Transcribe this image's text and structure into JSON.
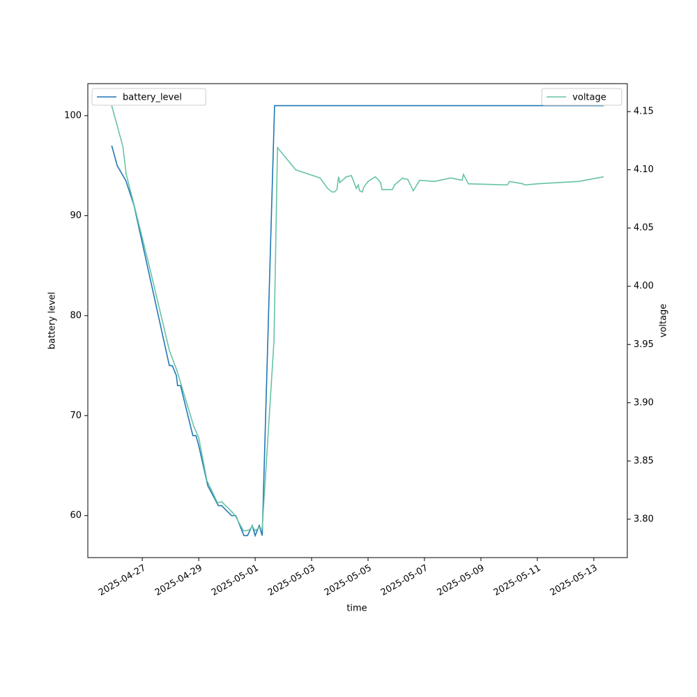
{
  "chart_data": {
    "type": "line",
    "xlabel": "time",
    "ylabel": "battery level",
    "y2label": "voltage",
    "xlim": [
      "2025-04-25 01:40",
      "2025-05-14 04:30"
    ],
    "xticks": [
      "2025-04-27",
      "2025-04-29",
      "2025-05-01",
      "2025-05-03",
      "2025-05-05",
      "2025-05-07",
      "2025-05-09",
      "2025-05-11",
      "2025-05-13"
    ],
    "ylim": [
      55.8,
      103.2
    ],
    "yticks": [
      60,
      70,
      80,
      90,
      100
    ],
    "y2lim": [
      3.767,
      4.174
    ],
    "y2ticks": [
      {
        "value": 3.8,
        "label": "3.80"
      },
      3.85,
      {
        "value": 3.9,
        "label": "3.90"
      },
      3.95,
      {
        "value": 4,
        "label": "4.00"
      },
      4.05,
      {
        "value": 4.1,
        "label": "4.10"
      },
      4.15
    ],
    "grid": false,
    "series": [
      {
        "name": "battery_level",
        "color": "#1f77b4",
        "legend": "upper left",
        "x": [
          "2025-04-25 22:00",
          "2025-04-26 02:40",
          "2025-04-26 10:00",
          "2025-04-26 17:00",
          "2025-04-27 23:00",
          "2025-04-28 01:30",
          "2025-04-28 05:00",
          "2025-04-28 06:00",
          "2025-04-28 08:30",
          "2025-04-28 19:00",
          "2025-04-28 21:40",
          "2025-04-29 00:00",
          "2025-04-29 07:40",
          "2025-04-29 16:40",
          "2025-04-29 19:30",
          "2025-04-30 03:50",
          "2025-04-30 07:30",
          "2025-04-30 14:30",
          "2025-04-30 17:30",
          "2025-04-30 21:30",
          "2025-05-01 00:00",
          "2025-05-01 03:30",
          "2025-05-01 06:00",
          "2025-05-01 11:50",
          "2025-05-01 16:30",
          "2025-05-13 08:20"
        ],
        "values": [
          97,
          95,
          93.5,
          91,
          75,
          75,
          74,
          73,
          73,
          68,
          68,
          67,
          63,
          61,
          61,
          60,
          60,
          58,
          58,
          59,
          58,
          59,
          58,
          82,
          101,
          101
        ]
      },
      {
        "name": "voltage",
        "color": "#66c2a5",
        "axis": "y2",
        "legend": "upper right",
        "x": [
          "2025-04-25 22:00",
          "2025-04-26 07:30",
          "2025-04-26 10:20",
          "2025-04-26 17:00",
          "2025-04-27 06:30",
          "2025-04-27 23:00",
          "2025-04-28 05:40",
          "2025-04-28 19:40",
          "2025-04-29 00:00",
          "2025-04-29 07:00",
          "2025-04-29 16:00",
          "2025-04-29 19:30",
          "2025-04-30 04:30",
          "2025-04-30 07:00",
          "2025-04-30 14:00",
          "2025-04-30 15:50",
          "2025-04-30 19:20",
          "2025-04-30 21:30",
          "2025-05-01 00:00",
          "2025-05-01 03:30",
          "2025-05-01 06:00",
          "2025-05-01 16:00",
          "2025-05-01 19:00",
          "2025-05-02 10:30",
          "2025-05-03 07:10",
          "2025-05-03 13:40",
          "2025-05-03 17:10",
          "2025-05-03 19:30",
          "2025-05-03 21:30",
          "2025-05-03 23:00",
          "2025-05-04 00:00",
          "2025-05-04 05:30",
          "2025-05-04 09:50",
          "2025-05-04 14:00",
          "2025-05-04 15:40",
          "2025-05-04 16:50",
          "2025-05-04 19:10",
          "2025-05-04 20:20",
          "2025-05-05 00:00",
          "2025-05-05 06:00",
          "2025-05-05 08:20",
          "2025-05-05 10:40",
          "2025-05-05 11:50",
          "2025-05-05 20:40",
          "2025-05-05 22:30",
          "2025-05-06 05:30",
          "2025-05-06 07:20",
          "2025-05-06 09:40",
          "2025-05-06 14:30",
          "2025-05-06 19:50",
          "2025-05-07 08:20",
          "2025-05-07 22:30",
          "2025-05-08 08:00",
          "2025-05-08 09:10",
          "2025-05-08 13:20",
          "2025-05-09 22:30",
          "2025-05-10 00:20",
          "2025-05-10 11:30",
          "2025-05-10 13:20",
          "2025-05-11 00:00",
          "2025-05-12 11:00",
          "2025-05-13 08:20"
        ],
        "values": [
          4.155,
          4.12,
          4.096,
          4.07,
          4.015,
          3.945,
          3.927,
          3.88,
          3.87,
          3.833,
          3.814,
          3.815,
          3.806,
          3.803,
          3.79,
          3.79,
          3.791,
          3.794,
          3.79,
          3.793,
          3.792,
          3.953,
          4.119,
          4.1,
          4.093,
          4.084,
          4.081,
          4.081,
          4.083,
          4.094,
          4.089,
          4.094,
          4.095,
          4.084,
          4.087,
          4.082,
          4.081,
          4.085,
          4.09,
          4.094,
          4.092,
          4.089,
          4.083,
          4.083,
          4.087,
          4.093,
          4.092,
          4.092,
          4.082,
          4.091,
          4.09,
          4.093,
          4.091,
          4.096,
          4.088,
          4.087,
          4.09,
          4.088,
          4.087,
          4.088,
          4.09,
          4.094
        ]
      }
    ]
  }
}
